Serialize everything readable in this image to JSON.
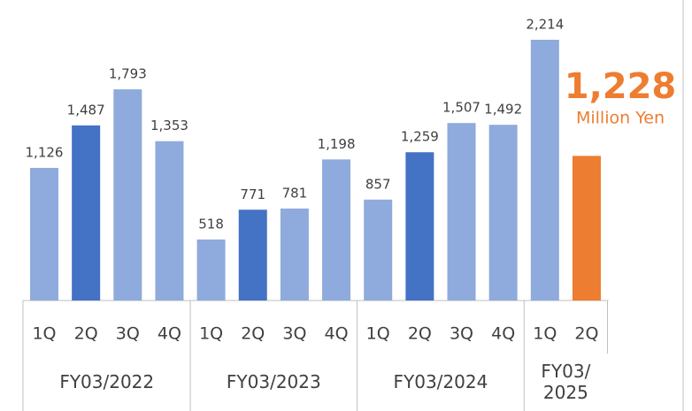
{
  "chart_data": {
    "type": "bar",
    "groups": [
      {
        "label": "FY03/2022",
        "categories": [
          "1Q",
          "2Q",
          "3Q",
          "4Q"
        ]
      },
      {
        "label": "FY03/2023",
        "categories": [
          "1Q",
          "2Q",
          "3Q",
          "4Q"
        ]
      },
      {
        "label": "FY03/2024",
        "categories": [
          "1Q",
          "2Q",
          "3Q",
          "4Q"
        ]
      },
      {
        "label": "FY03/\n2025",
        "categories": [
          "1Q",
          "2Q"
        ]
      }
    ],
    "values": [
      1126,
      1487,
      1793,
      1353,
      518,
      771,
      781,
      1198,
      857,
      1259,
      1507,
      1492,
      2214,
      1228
    ],
    "value_labels": [
      "1,126",
      "1,487",
      "1,793",
      "1,353",
      "518",
      "771",
      "781",
      "1,198",
      "857",
      "1,259",
      "1,507",
      "1,492",
      "2,214",
      "1,228"
    ],
    "colors": [
      "#8faadc",
      "#4472c4",
      "#8faadc",
      "#8faadc",
      "#8faadc",
      "#4472c4",
      "#8faadc",
      "#8faadc",
      "#8faadc",
      "#4472c4",
      "#8faadc",
      "#8faadc",
      "#8faadc",
      "#ed7d31"
    ],
    "annotation": "Million Yen"
  }
}
